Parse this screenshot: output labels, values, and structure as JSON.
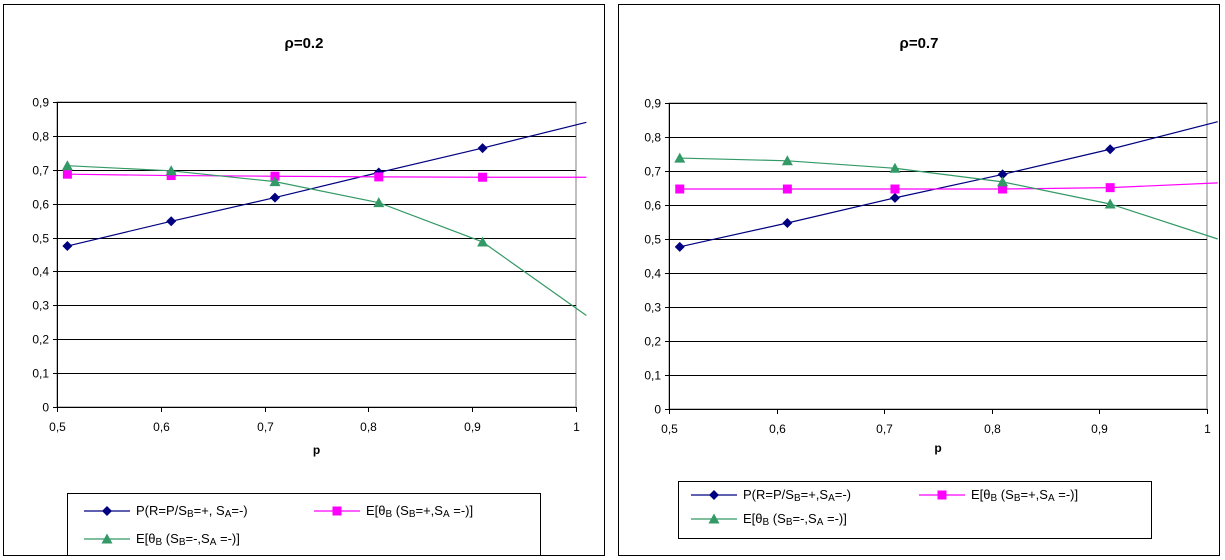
{
  "chart_data": [
    {
      "type": "line",
      "title": "ρ=0.2",
      "xlabel": "p",
      "ylabel": "",
      "xlim": [
        0.5,
        1
      ],
      "ylim": [
        0,
        0.9
      ],
      "x_ticks": [
        0.5,
        0.6,
        0.7,
        0.8,
        0.9,
        1
      ],
      "x_tick_labels": [
        "0,5",
        "0,6",
        "0,7",
        "0,8",
        "0,9",
        "1"
      ],
      "y_ticks": [
        0,
        0.1,
        0.2,
        0.3,
        0.4,
        0.5,
        0.6,
        0.7,
        0.8,
        0.9
      ],
      "y_tick_labels": [
        "0",
        "0,1",
        "0,2",
        "0,3",
        "0,4",
        "0,5",
        "0,6",
        "0,7",
        "0,8",
        "0,9"
      ],
      "grid": "horizontal",
      "legend_position": "bottom",
      "series": [
        {
          "name": "P(R=P/SB=+, SA=-)",
          "name_parts": [
            "P(R=P/S",
            "B",
            "=+, S",
            "A",
            "=-)"
          ],
          "color": "#000080",
          "marker": "diamond",
          "x": [
            0.51,
            0.61,
            0.71,
            0.81,
            0.91
          ],
          "y": [
            0.475,
            0.548,
            0.618,
            0.692,
            0.764
          ],
          "x_end": 1.01,
          "y_end": 0.84
        },
        {
          "name": "E[θB (SB=+,SA =-)]",
          "name_parts": [
            "E[θ",
            "B",
            " (S",
            "B",
            "=+,S",
            "A",
            " =-)]"
          ],
          "color": "#FF00FF",
          "marker": "square",
          "x": [
            0.51,
            0.61,
            0.71,
            0.81,
            0.91
          ],
          "y": [
            0.687,
            0.683,
            0.681,
            0.679,
            0.678
          ],
          "x_end": 1.01,
          "y_end": 0.678
        },
        {
          "name": "E[θB (SB=-,SA =-)]",
          "name_parts": [
            "E[θ",
            "B",
            " (S",
            "B",
            "=-,S",
            "A",
            " =-)]"
          ],
          "color": "#339966",
          "marker": "triangle",
          "x": [
            0.51,
            0.61,
            0.71,
            0.81,
            0.91
          ],
          "y": [
            0.712,
            0.697,
            0.665,
            0.603,
            0.487
          ],
          "x_end": 1.01,
          "y_end": 0.27
        }
      ]
    },
    {
      "type": "line",
      "title": "ρ=0.7",
      "xlabel": "p",
      "ylabel": "",
      "xlim": [
        0.5,
        1
      ],
      "ylim": [
        0,
        0.9
      ],
      "x_ticks": [
        0.5,
        0.6,
        0.7,
        0.8,
        0.9,
        1
      ],
      "x_tick_labels": [
        "0,5",
        "0,6",
        "0,7",
        "0,8",
        "0,9",
        "1"
      ],
      "y_ticks": [
        0,
        0.1,
        0.2,
        0.3,
        0.4,
        0.5,
        0.6,
        0.7,
        0.8,
        0.9
      ],
      "y_tick_labels": [
        "0",
        "0,1",
        "0,2",
        "0,3",
        "0,4",
        "0,5",
        "0,6",
        "0,7",
        "0,8",
        "0,9"
      ],
      "grid": "horizontal",
      "legend_position": "bottom",
      "series": [
        {
          "name": "P(R=P/SB=+,SA=-)",
          "name_parts": [
            "P(R=P/S",
            "B",
            "=+,S",
            "A",
            "=-)"
          ],
          "color": "#000080",
          "marker": "diamond",
          "x": [
            0.51,
            0.61,
            0.71,
            0.81,
            0.91
          ],
          "y": [
            0.477,
            0.547,
            0.621,
            0.69,
            0.764
          ],
          "x_end": 1.01,
          "y_end": 0.845
        },
        {
          "name": "E[θB (SB=+,SA =-)]",
          "name_parts": [
            "E[θ",
            "B",
            " (S",
            "B",
            "=+,S",
            "A",
            " =-)]"
          ],
          "color": "#FF00FF",
          "marker": "square",
          "x": [
            0.51,
            0.61,
            0.71,
            0.81,
            0.91
          ],
          "y": [
            0.647,
            0.647,
            0.647,
            0.647,
            0.651
          ],
          "x_end": 1.01,
          "y_end": 0.665
        },
        {
          "name": "E[θB (SB=-,SA =-)]",
          "name_parts": [
            "E[θ",
            "B",
            " (S",
            "B",
            "=-,S",
            "A",
            " =-)]"
          ],
          "color": "#339966",
          "marker": "triangle",
          "x": [
            0.51,
            0.61,
            0.71,
            0.81,
            0.91
          ],
          "y": [
            0.738,
            0.73,
            0.708,
            0.668,
            0.603
          ],
          "x_end": 1.01,
          "y_end": 0.5
        }
      ]
    }
  ]
}
